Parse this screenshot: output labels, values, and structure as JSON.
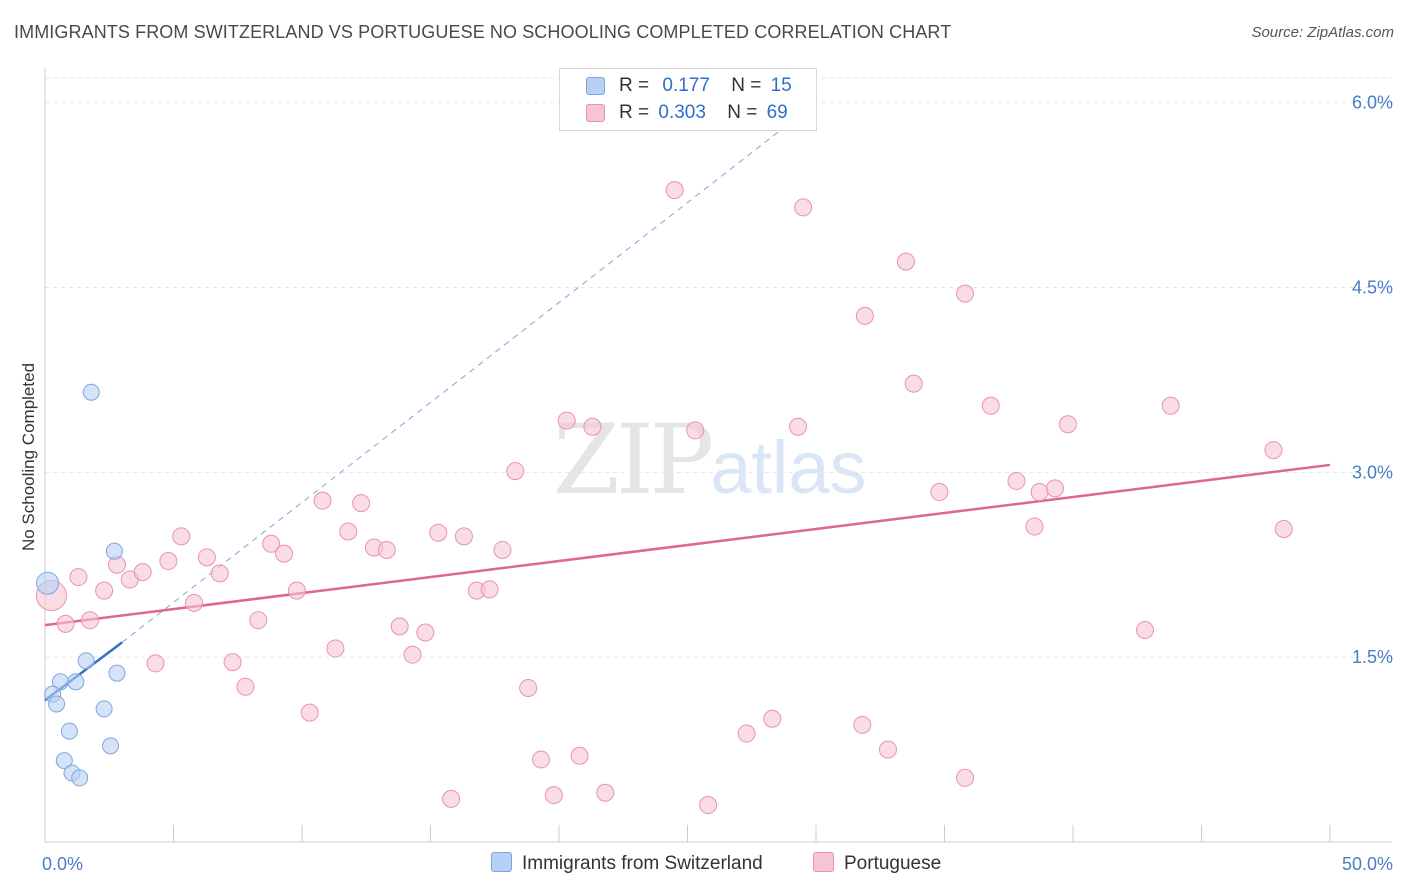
{
  "title": "IMMIGRANTS FROM SWITZERLAND VS PORTUGUESE NO SCHOOLING COMPLETED CORRELATION CHART",
  "source": "Source: ZipAtlas.com",
  "watermark": {
    "zip": "ZIP",
    "atlas": "atlas"
  },
  "legend": {
    "series1": {
      "r_label": "R =",
      "r_value": "0.177",
      "n_label": "N =",
      "n_value": "15"
    },
    "series2": {
      "r_label": "R =",
      "r_value": "0.303",
      "n_label": "N =",
      "n_value": "69"
    }
  },
  "colors": {
    "blue_fill": "#b8d0f3",
    "blue_stroke": "#7fa6dc",
    "blue_line": "#2f6fcb",
    "pink_fill": "#f7c4d3",
    "pink_stroke": "#e993ad",
    "pink_line": "#e0668e",
    "grid": "#e6e6e6",
    "tick_text": "#4a7cc7"
  },
  "chart_data": {
    "type": "scatter",
    "title": "IMMIGRANTS FROM SWITZERLAND VS PORTUGUESE NO SCHOOLING COMPLETED CORRELATION CHART",
    "xlabel": "",
    "ylabel": "No Schooling Completed",
    "xlim": [
      0,
      50
    ],
    "ylim": [
      0,
      6.2
    ],
    "x_tick_labels": [
      "0.0%",
      "50.0%"
    ],
    "y_ticks": [
      1.5,
      3.0,
      4.5,
      6.0
    ],
    "y_tick_labels": [
      "1.5%",
      "3.0%",
      "4.5%",
      "6.0%"
    ],
    "series": [
      {
        "name": "Immigrants from Switzerland",
        "r": 0.177,
        "n": 15,
        "trend": {
          "x0": 0,
          "y0": 1.15,
          "x1": 3.0,
          "y1": 1.62,
          "extend_to_x": 30.0,
          "extend_to_y": 6.0
        },
        "points": [
          [
            0.1,
            2.1
          ],
          [
            1.8,
            3.65
          ],
          [
            2.7,
            2.36
          ],
          [
            1.6,
            1.47
          ],
          [
            2.8,
            1.37
          ],
          [
            0.6,
            1.3
          ],
          [
            1.2,
            1.3
          ],
          [
            0.3,
            1.2
          ],
          [
            0.45,
            1.12
          ],
          [
            2.3,
            1.08
          ],
          [
            0.95,
            0.9
          ],
          [
            2.55,
            0.78
          ],
          [
            0.75,
            0.66
          ],
          [
            1.05,
            0.56
          ],
          [
            1.35,
            0.52
          ]
        ]
      },
      {
        "name": "Portuguese",
        "r": 0.303,
        "n": 69,
        "trend": {
          "x0": 0,
          "y0": 1.76,
          "x1": 50,
          "y1": 3.06
        },
        "points": [
          [
            0.25,
            2.0
          ],
          [
            0.8,
            1.77
          ],
          [
            1.3,
            2.15
          ],
          [
            1.75,
            1.8
          ],
          [
            2.3,
            2.04
          ],
          [
            2.8,
            2.25
          ],
          [
            3.3,
            2.13
          ],
          [
            3.8,
            2.19
          ],
          [
            4.3,
            1.45
          ],
          [
            4.8,
            2.28
          ],
          [
            5.3,
            2.48
          ],
          [
            5.8,
            1.94
          ],
          [
            6.3,
            2.31
          ],
          [
            6.8,
            2.18
          ],
          [
            7.3,
            1.46
          ],
          [
            7.8,
            1.26
          ],
          [
            8.3,
            1.8
          ],
          [
            8.8,
            2.42
          ],
          [
            9.3,
            2.34
          ],
          [
            9.8,
            2.04
          ],
          [
            10.3,
            1.05
          ],
          [
            10.8,
            2.77
          ],
          [
            11.3,
            1.57
          ],
          [
            11.8,
            2.52
          ],
          [
            12.3,
            2.75
          ],
          [
            12.8,
            2.39
          ],
          [
            13.3,
            2.37
          ],
          [
            13.8,
            1.75
          ],
          [
            14.3,
            1.52
          ],
          [
            14.8,
            1.7
          ],
          [
            15.3,
            2.51
          ],
          [
            15.8,
            0.35
          ],
          [
            16.3,
            2.48
          ],
          [
            16.8,
            2.04
          ],
          [
            17.3,
            2.05
          ],
          [
            17.8,
            2.37
          ],
          [
            18.3,
            3.01
          ],
          [
            18.8,
            1.25
          ],
          [
            19.3,
            0.67
          ],
          [
            19.8,
            0.38
          ],
          [
            20.3,
            3.42
          ],
          [
            20.8,
            0.7
          ],
          [
            21.3,
            3.37
          ],
          [
            21.8,
            0.4
          ],
          [
            24.5,
            5.29
          ],
          [
            25.3,
            3.34
          ],
          [
            25.8,
            0.3
          ],
          [
            27.3,
            0.88
          ],
          [
            28.3,
            1.0
          ],
          [
            29.3,
            3.37
          ],
          [
            29.5,
            5.15
          ],
          [
            31.8,
            0.95
          ],
          [
            31.9,
            4.27
          ],
          [
            32.8,
            0.75
          ],
          [
            33.8,
            3.72
          ],
          [
            33.5,
            4.71
          ],
          [
            34.8,
            2.84
          ],
          [
            35.8,
            0.52
          ],
          [
            35.8,
            4.45
          ],
          [
            36.8,
            3.54
          ],
          [
            37.8,
            2.93
          ],
          [
            38.5,
            2.56
          ],
          [
            38.7,
            2.84
          ],
          [
            39.3,
            2.87
          ],
          [
            39.8,
            3.39
          ],
          [
            42.8,
            1.72
          ],
          [
            43.8,
            3.54
          ],
          [
            47.8,
            3.18
          ],
          [
            48.2,
            2.54
          ]
        ]
      }
    ]
  },
  "bottom_legend": {
    "series1": "Immigrants from Switzerland",
    "series2": "Portuguese"
  }
}
